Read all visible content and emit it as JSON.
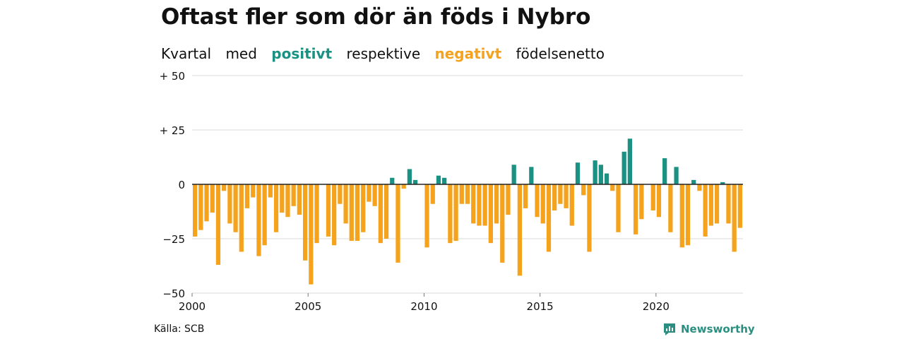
{
  "title": "Oftast fler som dör än föds i Nybro",
  "subtitle": {
    "prefix": "Kvartal",
    "word_med": "med",
    "positive_word": "positivt",
    "middle": "respektive",
    "negative_word": "negativt",
    "suffix": "födelsenetto"
  },
  "source": "Källa: SCB",
  "brand": {
    "name": "Newsworthy",
    "icon": "newsworthy-logo-icon",
    "color": "#2a8f80"
  },
  "colors": {
    "positive": "#1a9182",
    "negative": "#f5a21d",
    "grid": "#d9d9d9",
    "axis": "#222222"
  },
  "chart_data": {
    "type": "bar",
    "x_unit": "year (quarterly bars)",
    "x_start": 2000.0,
    "x_end": 2023.75,
    "x_ticks": [
      2000,
      2005,
      2010,
      2015,
      2020
    ],
    "x_tick_labels": [
      "2000",
      "2005",
      "2010",
      "2015",
      "2020"
    ],
    "y_ticks": [
      50,
      25,
      0,
      -25,
      -50
    ],
    "y_tick_labels": [
      "+ 50",
      "+ 25",
      "0",
      "−25",
      "−50"
    ],
    "ylim": [
      -50,
      50
    ],
    "grid": true,
    "legend": "inline in subtitle",
    "values": [
      -24,
      -21,
      -17,
      -13,
      -37,
      -3,
      -18,
      -22,
      -31,
      -11,
      -6,
      -33,
      -28,
      -6,
      -22,
      -13,
      -15,
      -10,
      -14,
      -35,
      -46,
      -27,
      0,
      -24,
      -28,
      -9,
      -18,
      -26,
      -26,
      -22,
      -8,
      -10,
      -27,
      -25,
      3,
      -36,
      -2,
      7,
      2,
      0,
      -29,
      -9,
      4,
      3,
      -27,
      -26,
      -9,
      -9,
      -18,
      -19,
      -19,
      -27,
      -18,
      -36,
      -14,
      9,
      -42,
      -11,
      8,
      -15,
      -18,
      -31,
      -12,
      -9,
      -11,
      -19,
      10,
      -5,
      -31,
      11,
      9,
      5,
      -3,
      -22,
      15,
      21,
      -23,
      -16,
      0,
      -12,
      -15,
      12,
      -22,
      8,
      -29,
      -28,
      2,
      -3,
      -24,
      -19,
      -18,
      1,
      -18,
      -31,
      -20
    ]
  }
}
